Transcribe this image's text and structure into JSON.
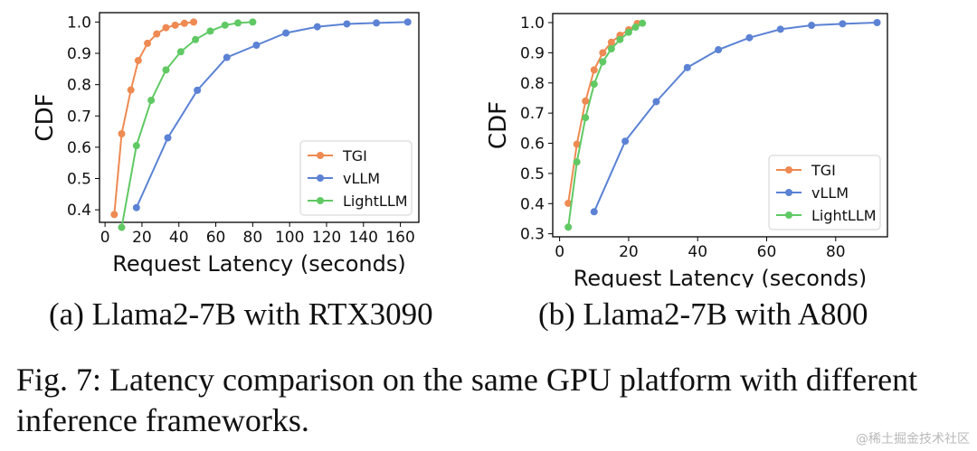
{
  "chart_data": [
    {
      "type": "line",
      "title": "",
      "xlabel": "Request Latency (seconds)",
      "ylabel": "CDF",
      "xlim": [
        -3,
        170
      ],
      "ylim": [
        0.36,
        1.03
      ],
      "xticks": [
        0,
        20,
        40,
        60,
        80,
        100,
        120,
        140,
        160
      ],
      "yticks": [
        0.4,
        0.5,
        0.6,
        0.7,
        0.8,
        0.9,
        1.0
      ],
      "ytick_labels": [
        "0.4",
        "0.5",
        "0.6",
        "0.7",
        "0.8",
        "0.9",
        "1.0"
      ],
      "legend_position": "bottom-right",
      "series": [
        {
          "name": "TGI",
          "color": "#ee8a52",
          "x": [
            5,
            9,
            14,
            18,
            23,
            28,
            33,
            38,
            43,
            48
          ],
          "y": [
            0.385,
            0.643,
            0.783,
            0.877,
            0.932,
            0.962,
            0.982,
            0.99,
            0.996,
            1.0
          ]
        },
        {
          "name": "vLLM",
          "color": "#5b82d4",
          "x": [
            17,
            34,
            50,
            66,
            82,
            98,
            115,
            131,
            147,
            164
          ],
          "y": [
            0.407,
            0.63,
            0.782,
            0.887,
            0.926,
            0.965,
            0.985,
            0.994,
            0.997,
            1.0
          ]
        },
        {
          "name": "LightLLM",
          "color": "#60c964",
          "x": [
            9,
            17,
            25,
            33,
            41,
            49,
            57,
            65,
            72,
            80
          ],
          "y": [
            0.344,
            0.605,
            0.75,
            0.847,
            0.905,
            0.944,
            0.971,
            0.99,
            0.997,
            1.0
          ]
        }
      ]
    },
    {
      "type": "line",
      "title": "",
      "xlabel": "Request Latency (seconds)",
      "ylabel": "CDF",
      "xlim": [
        -2,
        95
      ],
      "ylim": [
        0.29,
        1.03
      ],
      "xticks": [
        0,
        20,
        40,
        60,
        80
      ],
      "yticks": [
        0.3,
        0.4,
        0.5,
        0.6,
        0.7,
        0.8,
        0.9,
        1.0
      ],
      "ytick_labels": [
        "0.3",
        "0.4",
        "0.5",
        "0.6",
        "0.7",
        "0.8",
        "0.9",
        "1.0"
      ],
      "legend_position": "bottom-right",
      "series": [
        {
          "name": "TGI",
          "color": "#ee8a52",
          "x": [
            2.5,
            5,
            7.5,
            10,
            12.5,
            15,
            17.5,
            20,
            22.5
          ],
          "y": [
            0.401,
            0.597,
            0.74,
            0.843,
            0.9,
            0.935,
            0.958,
            0.976,
            0.997
          ]
        },
        {
          "name": "vLLM",
          "color": "#5b82d4",
          "x": [
            10,
            19,
            28,
            37,
            46,
            55,
            64,
            73,
            82,
            92
          ],
          "y": [
            0.373,
            0.607,
            0.738,
            0.851,
            0.91,
            0.95,
            0.978,
            0.991,
            0.996,
            1.0
          ]
        },
        {
          "name": "LightLLM",
          "color": "#60c964",
          "x": [
            2.5,
            5,
            7.5,
            10,
            12.5,
            15,
            17.5,
            20,
            22,
            24
          ],
          "y": [
            0.322,
            0.538,
            0.685,
            0.796,
            0.87,
            0.913,
            0.944,
            0.968,
            0.985,
            0.998
          ]
        }
      ]
    }
  ],
  "captions": {
    "sub_a": "(a) Llama2-7B with RTX3090",
    "sub_b": "(b) Llama2-7B with A800",
    "figure": "Fig. 7: Latency comparison on the same GPU platform with different inference frameworks."
  },
  "watermark": "@稀土掘金技术社区"
}
